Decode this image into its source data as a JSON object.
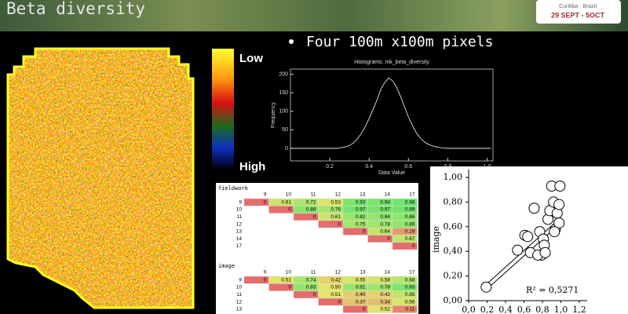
{
  "slide": {
    "title": "Beta diversity",
    "bullet": "Four 100m x100m pixels",
    "logo_place": "Curitiba · Brazil",
    "logo_dates": "29 SEPT - 5OCT",
    "legend_low": "Low",
    "legend_high": "High"
  },
  "tables": [
    {
      "label": "fieldwork",
      "columns": [
        "9",
        "10",
        "11",
        "12",
        "13",
        "14",
        "17"
      ],
      "rows": [
        [
          "9",
          "0",
          "0.61",
          "0.72",
          "0.53",
          "0.93",
          "0.94",
          "0.98"
        ],
        [
          "10",
          null,
          "0",
          "0.88",
          "0.76",
          "0.97",
          "0.97",
          "0.99"
        ],
        [
          "11",
          null,
          null,
          "0",
          "0.61",
          "0.82",
          "0.84",
          "0.86"
        ],
        [
          "12",
          null,
          null,
          null,
          "0",
          "0.75",
          "0.78",
          "0.86"
        ],
        [
          "13",
          null,
          null,
          null,
          null,
          "0",
          "0.64",
          "0.19"
        ],
        [
          "14",
          null,
          null,
          null,
          null,
          null,
          "0",
          "0.67"
        ],
        [
          "17",
          null,
          null,
          null,
          null,
          null,
          null,
          "0"
        ]
      ]
    },
    {
      "label": "image",
      "columns": [
        "9",
        "10",
        "11",
        "12",
        "13",
        "14",
        "17"
      ],
      "rows": [
        [
          "9",
          "0",
          "0.51",
          "0.74",
          "0.42",
          "0.55",
          "0.58",
          "0.68"
        ],
        [
          "10",
          null,
          "0",
          "0.83",
          "0.50",
          "0.81",
          "0.78",
          "0.93"
        ],
        [
          "11",
          null,
          null,
          "0",
          "0.51",
          "0.40",
          "0.42",
          "0.65"
        ],
        [
          "12",
          null,
          null,
          null,
          "0",
          "0.37",
          "0.34",
          "0.56"
        ],
        [
          "13",
          null,
          null,
          null,
          null,
          "0",
          "0.52",
          "0.11"
        ]
      ]
    }
  ],
  "chart_data": [
    {
      "type": "line",
      "title": "Histograms: mk_beta_diversity",
      "x_label": "Data Value",
      "y_label": "Frequency",
      "color": "#ffffff",
      "x": [
        0.0,
        0.24,
        0.26,
        0.28,
        0.3,
        0.32,
        0.34,
        0.36,
        0.38,
        0.4,
        0.42,
        0.44,
        0.46,
        0.48,
        0.5,
        0.52,
        0.54,
        0.56,
        0.58,
        0.6,
        0.62,
        0.64,
        0.66,
        0.68,
        0.7,
        0.72,
        0.74,
        0.76,
        0.78,
        0.8,
        1.02
      ],
      "values": [
        0,
        0,
        2,
        4,
        8,
        14,
        25,
        40,
        58,
        80,
        105,
        130,
        160,
        178,
        190,
        182,
        165,
        140,
        112,
        85,
        62,
        42,
        28,
        18,
        11,
        7,
        4,
        2,
        1,
        0,
        0
      ],
      "xlim": [
        0,
        1.03
      ],
      "ylim": [
        -34,
        214
      ],
      "xticks": [
        0.2,
        0.4,
        0.6,
        0.8,
        {
          "value": 1,
          "label": "1.0"
        }
      ],
      "yticks": [
        0,
        50,
        100,
        150,
        200
      ]
    },
    {
      "type": "scatter",
      "y_label": "image",
      "annotation": "R² = 0,5271",
      "color": "#ffffff",
      "x": [
        0.19,
        0.53,
        0.61,
        0.64,
        0.71,
        0.79,
        0.77,
        0.81,
        0.86,
        0.88,
        0.9,
        0.92,
        0.94,
        0.96,
        0.98,
        0.99,
        0.98,
        0.93,
        0.67,
        0.75,
        0.82,
        0.83
      ],
      "values": [
        0.11,
        0.41,
        0.53,
        0.52,
        0.75,
        0.37,
        0.56,
        0.5,
        0.66,
        0.73,
        0.93,
        0.8,
        0.58,
        0.71,
        0.78,
        0.93,
        0.63,
        0.56,
        0.39,
        0.37,
        0.45,
        0.39
      ],
      "trendline": {
        "x": [
          0.19,
          0.98
        ],
        "values": [
          0.11,
          0.64
        ]
      },
      "xlim": [
        0,
        1.2
      ],
      "ylim": [
        0,
        1
      ],
      "xticks": [
        {
          "value": 0,
          "label": "0,0"
        },
        {
          "value": 0.2,
          "label": "0,2"
        },
        {
          "value": 0.4,
          "label": "0,4"
        },
        {
          "value": 0.6,
          "label": "0,6"
        },
        {
          "value": 0.8,
          "label": "0,8"
        },
        {
          "value": 1,
          "label": "1,0"
        },
        {
          "value": 1.2,
          "label": "1,2"
        }
      ],
      "yticks": [
        {
          "value": 0,
          "label": "0,00"
        },
        {
          "value": 0.2,
          "label": "0,20"
        },
        {
          "value": 0.4,
          "label": "0,40"
        },
        {
          "value": 0.6,
          "label": "0,60"
        },
        {
          "value": 0.8,
          "label": "0,80"
        },
        {
          "value": 1,
          "label": "1,00"
        }
      ]
    }
  ]
}
